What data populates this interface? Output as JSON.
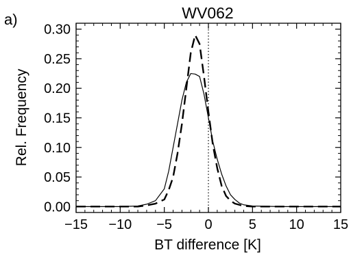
{
  "chart_data": {
    "type": "line",
    "panel_label": "a)",
    "title": "WV062",
    "xlabel": "BT difference [K]",
    "ylabel": "Rel. Frequency",
    "xlim": [
      -15,
      15
    ],
    "ylim": [
      -0.01,
      0.31
    ],
    "xticks": [
      -15,
      -10,
      -5,
      0,
      5,
      10,
      15
    ],
    "xtick_labels": [
      "−15",
      "−10",
      "−5",
      "0",
      "5",
      "10",
      "15"
    ],
    "yticks": [
      0.0,
      0.05,
      0.1,
      0.15,
      0.2,
      0.25,
      0.3
    ],
    "ytick_labels": [
      "0.00",
      "0.05",
      "0.10",
      "0.15",
      "0.20",
      "0.25",
      "0.30"
    ],
    "grid": false,
    "reference_line": {
      "x": 0,
      "style": "dotted"
    },
    "series": [
      {
        "style": "solid",
        "x": [
          -15,
          -10,
          -8,
          -7,
          -6,
          -5,
          -4.5,
          -4,
          -3.5,
          -3,
          -2.5,
          -2,
          -1.5,
          -1,
          -0.5,
          0,
          0.5,
          1,
          1.5,
          2,
          2.5,
          3,
          3.5,
          4,
          5,
          8,
          15
        ],
        "y": [
          0.0,
          0.0,
          0.001,
          0.004,
          0.01,
          0.03,
          0.06,
          0.1,
          0.14,
          0.18,
          0.21,
          0.225,
          0.224,
          0.22,
          0.19,
          0.15,
          0.11,
          0.08,
          0.055,
          0.035,
          0.02,
          0.012,
          0.006,
          0.003,
          0.001,
          0.0,
          0.0
        ]
      },
      {
        "style": "dashed",
        "x": [
          -15,
          -10,
          -8,
          -7,
          -6,
          -5,
          -4.5,
          -4,
          -3.5,
          -3,
          -2.5,
          -2,
          -1.5,
          -1,
          -0.5,
          0,
          0.5,
          1,
          1.5,
          2,
          2.5,
          3,
          3.5,
          4,
          5,
          8,
          15
        ],
        "y": [
          0.0,
          0.0,
          0.0,
          0.002,
          0.005,
          0.012,
          0.028,
          0.05,
          0.09,
          0.14,
          0.2,
          0.26,
          0.29,
          0.275,
          0.22,
          0.16,
          0.105,
          0.065,
          0.035,
          0.018,
          0.01,
          0.005,
          0.003,
          0.001,
          0.0,
          0.0,
          0.0
        ]
      }
    ]
  }
}
